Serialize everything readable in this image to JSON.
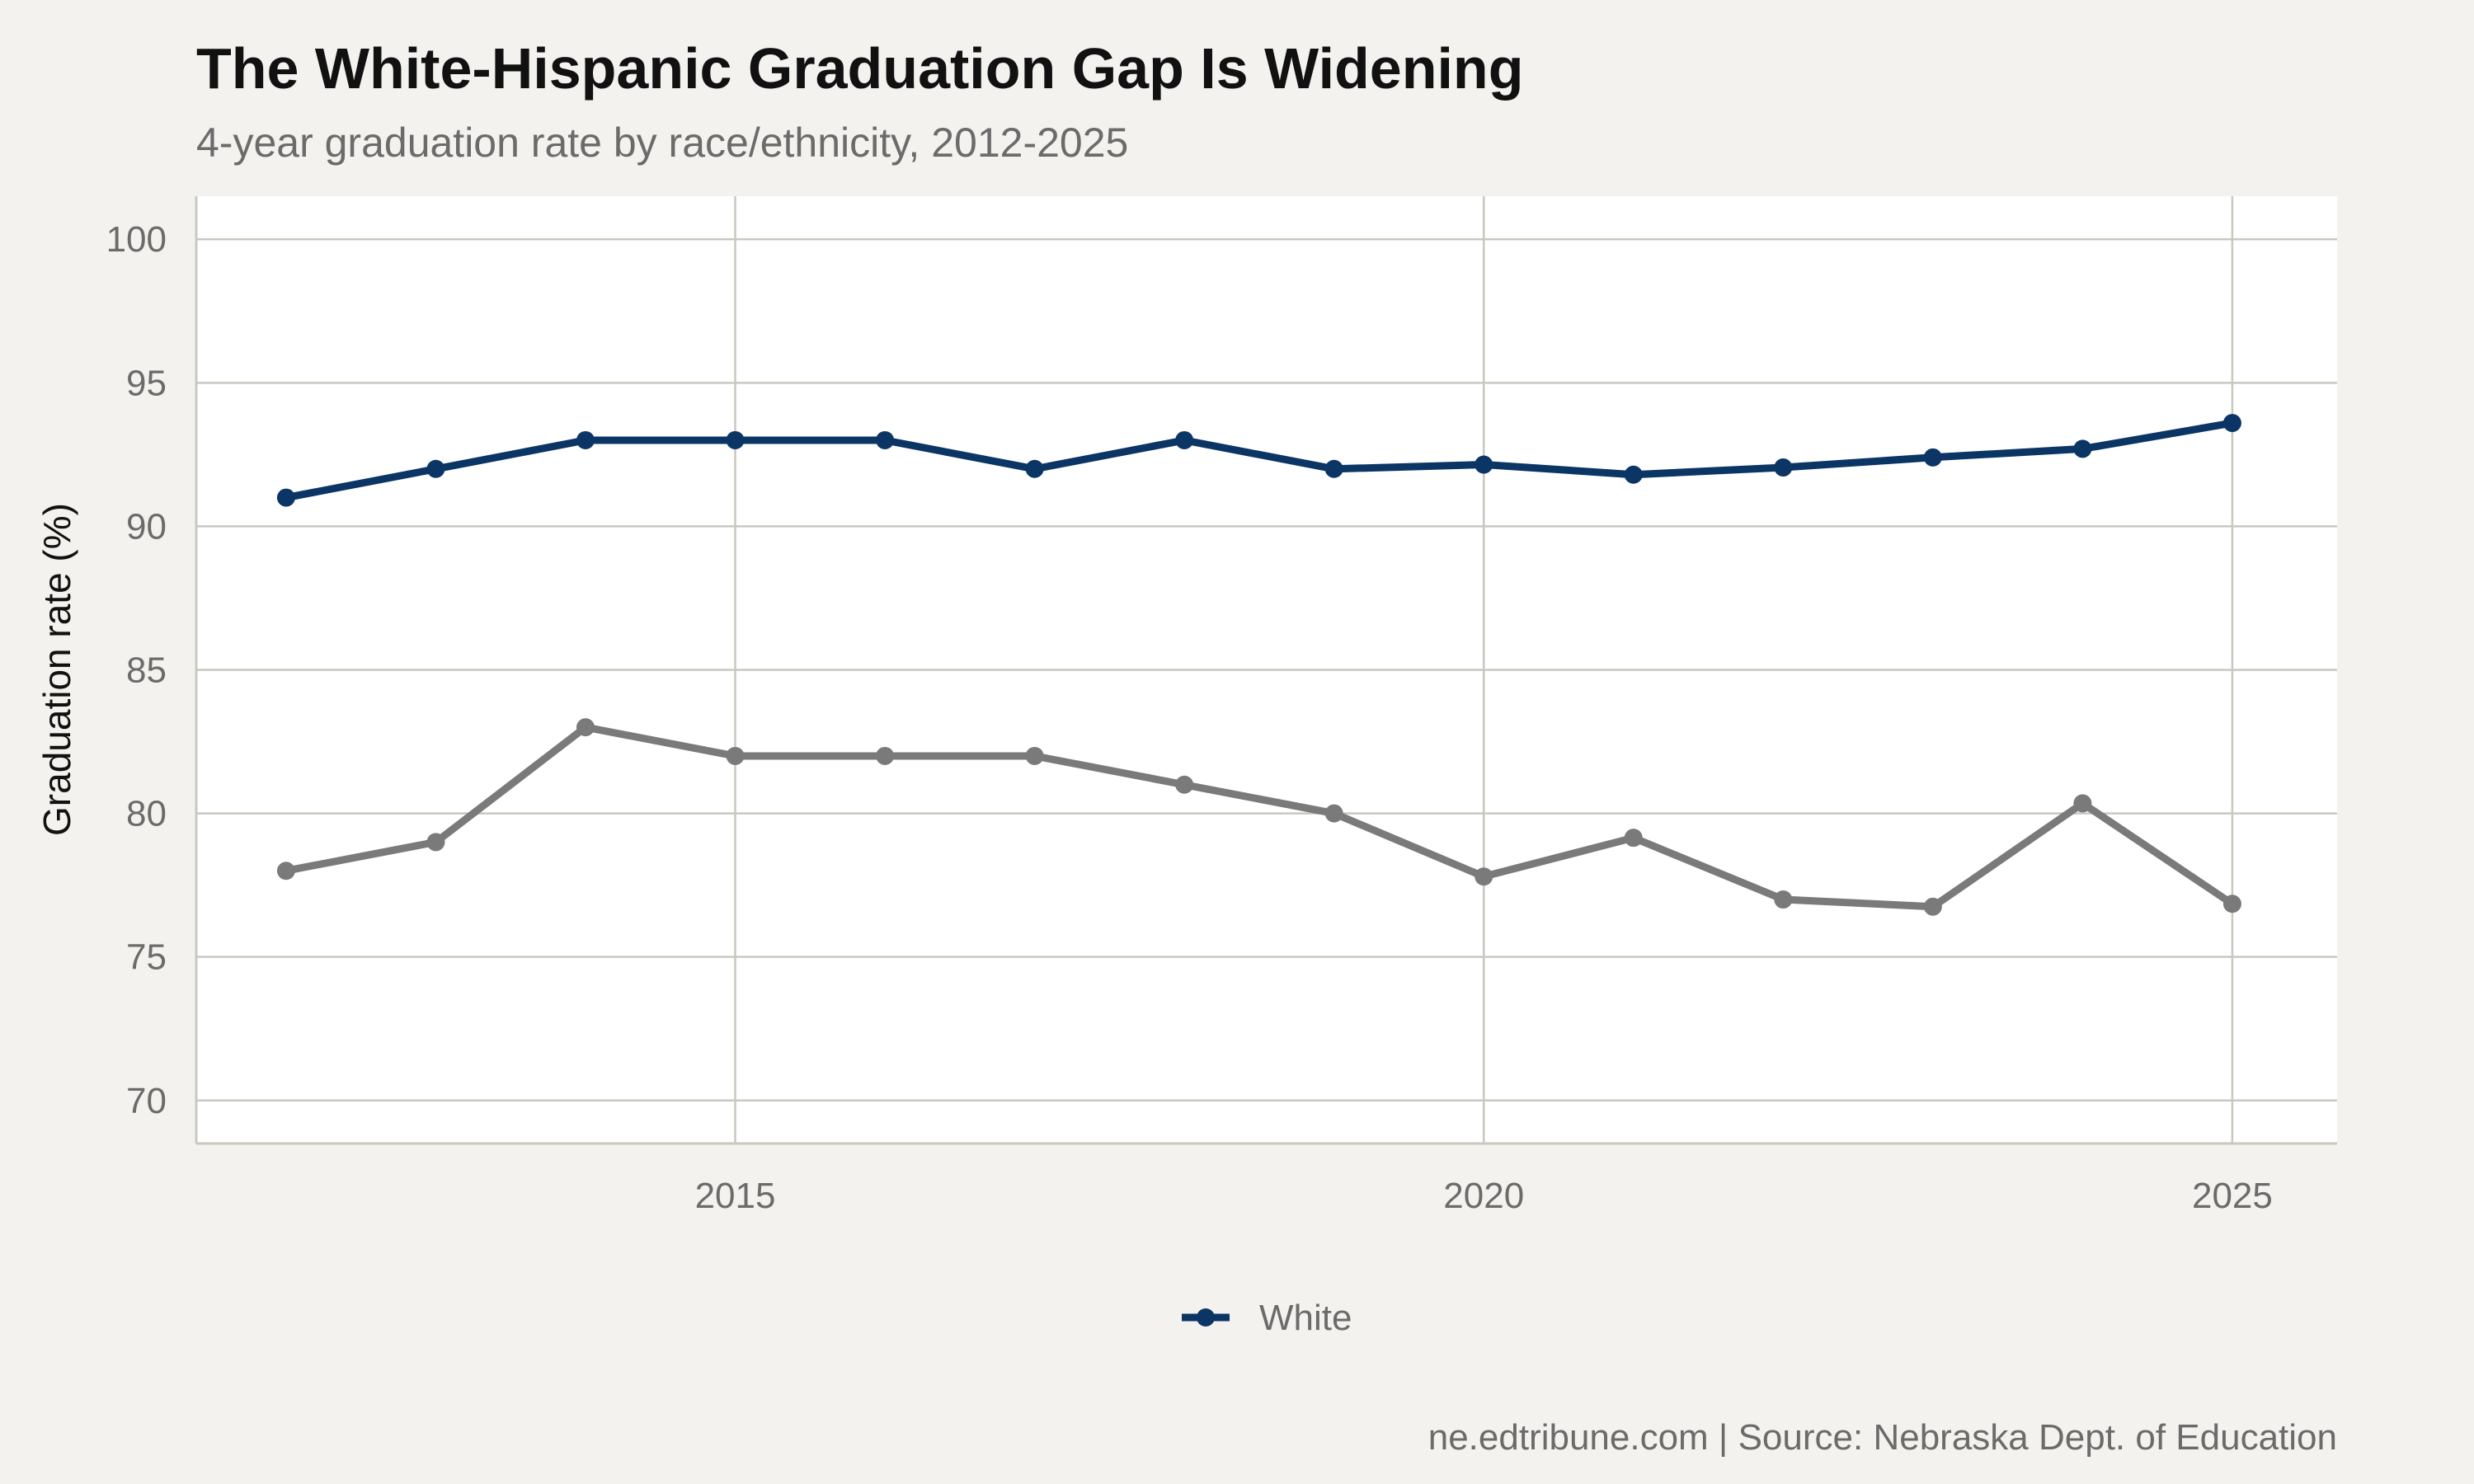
{
  "chart_data": {
    "type": "line",
    "title": "The White-Hispanic Graduation Gap Is Widening",
    "subtitle": "4-year graduation rate by race/ethnicity, 2012-2025",
    "xlabel": "",
    "ylabel": "Graduation rate (%)",
    "caption": "ne.edtribune.com | Source: Nebraska Dept. of Education",
    "xlim": [
      2011.4,
      2025.7
    ],
    "ylim": [
      68.5,
      101.5
    ],
    "x_ticks": [
      2015,
      2020,
      2025
    ],
    "x_tick_labels": [
      "2015",
      "2020",
      "2025"
    ],
    "y_ticks": [
      70,
      75,
      80,
      85,
      90,
      95,
      100
    ],
    "y_tick_labels": [
      "70",
      "75",
      "80",
      "85",
      "90",
      "95",
      "100"
    ],
    "grid": true,
    "legend_position": "bottom",
    "x": [
      2012,
      2013,
      2014,
      2015,
      2016,
      2017,
      2018,
      2019,
      2020,
      2021,
      2022,
      2023,
      2024,
      2025
    ],
    "series": [
      {
        "name": "White",
        "color": "#0b3564",
        "in_legend": true,
        "values": [
          91,
          92,
          93,
          93,
          93,
          92,
          93,
          92,
          92.15,
          91.8,
          92.05,
          92.4,
          92.7,
          93.6
        ]
      },
      {
        "color": "#7a7a7a",
        "in_legend": false,
        "values": [
          78,
          79,
          83,
          82,
          82,
          82,
          81,
          80,
          77.8,
          79.15,
          77,
          76.75,
          80.35,
          76.85
        ]
      }
    ]
  },
  "colors": {
    "background": "#f4f2ee",
    "panel": "#ffffff",
    "grid": "#c8c8c0"
  }
}
